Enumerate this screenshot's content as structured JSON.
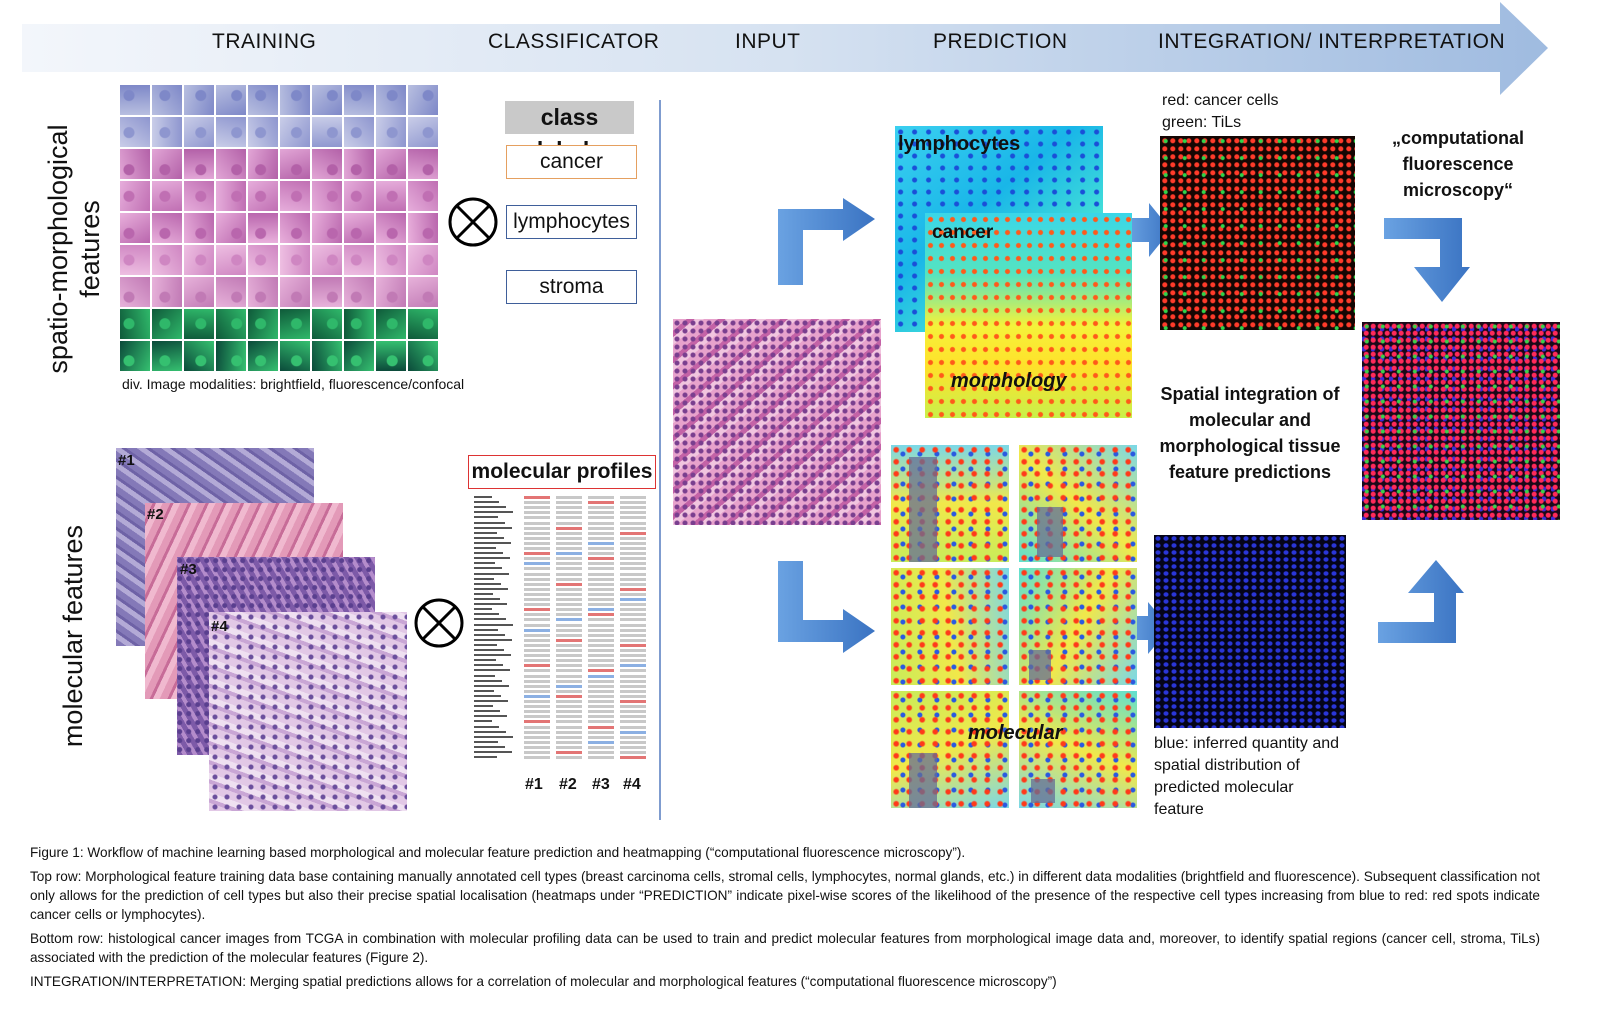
{
  "stages": [
    "TRAINING",
    "CLASSIFICATOR",
    "INPUT",
    "PREDICTION",
    "INTEGRATION/ INTERPRETATION"
  ],
  "left_labels": {
    "top_line1": "spatio-morphological",
    "top_line2": "features",
    "bottom": "molecular features"
  },
  "modalities_note": "div. Image modalities: brightfield, fluorescence/confocal",
  "class_labels": {
    "title": "class labels",
    "items": [
      "cancer",
      "lymphocytes",
      "stroma"
    ]
  },
  "operator_symbol": "⊗",
  "stack_labels": [
    "#1",
    "#2",
    "#3",
    "#4"
  ],
  "molecular_profiles": {
    "title": "molecular profiles",
    "columns": [
      "#1",
      "#2",
      "#3",
      "#4"
    ]
  },
  "heatmaps": {
    "lymphocytes": "lymphocytes",
    "cancer": "cancer",
    "morphology": "morphology",
    "molecular": "molecular"
  },
  "integration": {
    "legend_red": "red: cancer cells",
    "legend_green": "green: TiLs",
    "spatial_title": "Spatial integration of molecular and morphological tissue feature predictions",
    "cfm_title": "„computational fluorescence microscopy“",
    "blue_note": "blue: inferred quantity and spatial distribution of predicted molecular feature"
  },
  "caption": {
    "p1": "Figure 1: Workflow of machine learning based morphological and molecular feature prediction and heatmapping (“computational fluorescence microscopy”).",
    "p2": "Top row: Morphological feature training data base containing manually annotated cell types (breast carcinoma cells, stromal cells, lymphocytes, normal glands, etc.) in different data modalities (brightfield and fluorescence). Subsequent classification not only allows for the prediction of cell types but also their precise spatial localisation (heatmaps under “PREDICTION” indicate pixel-wise scores of the likelihood of the presence of the respective cell types increasing from blue to red: red spots indicate cancer cells or lymphocytes).",
    "p3": "Bottom row: histological cancer images from TCGA in combination with molecular profiling data can be used to train and predict molecular features from morphological image data and, moreover, to identify spatial regions (cancer cell, stroma, TiLs) associated with the prediction of the molecular features (Figure 2).",
    "p4": "INTEGRATION/INTERPRETATION: Merging spatial predictions allows for a correlation of molecular and morphological features (“computational fluorescence microscopy”)"
  },
  "colors": {
    "arrow_blue": "#5b8fd6",
    "banner_light": "#eef3fa",
    "banner_dark": "#9fb9dd",
    "he_pink": "#d98bc4",
    "he_purple": "#6a4f9a",
    "fluor_green": "#1f9a4a",
    "class_cancer_border": "#e5a060",
    "class_other_border": "#3f5f9a",
    "mol_title_border": "#d33"
  }
}
